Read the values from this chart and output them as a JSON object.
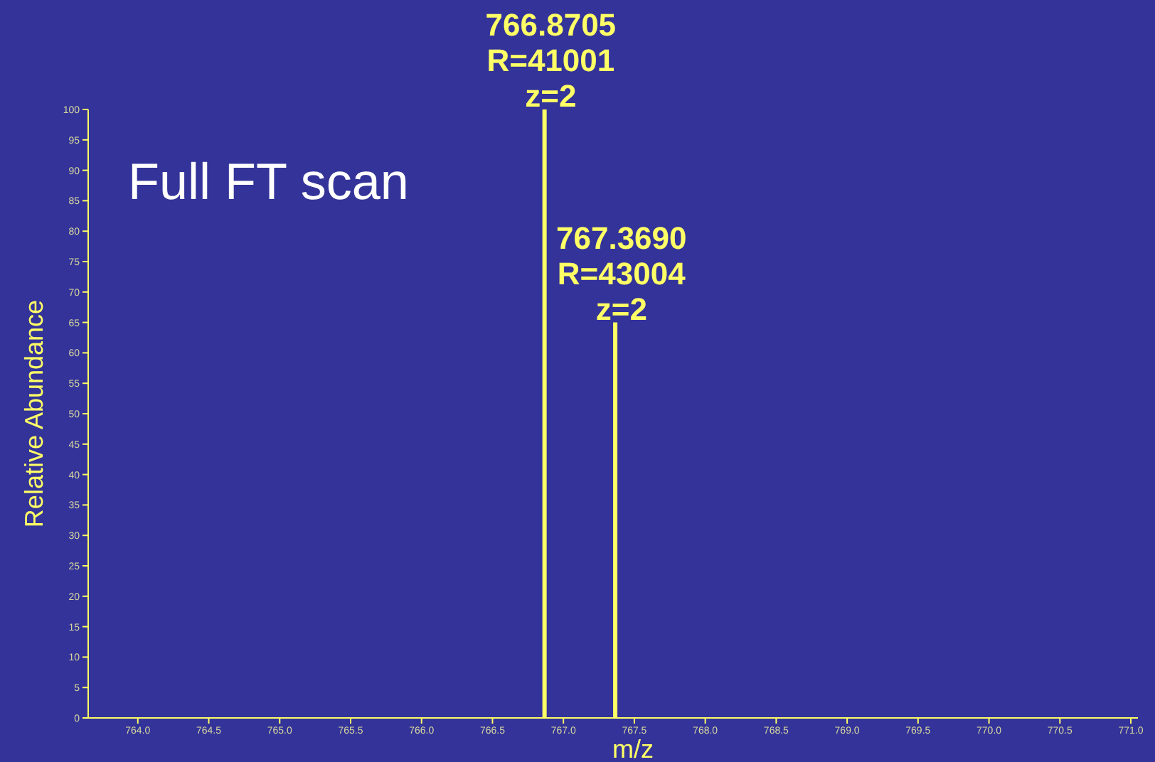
{
  "chart_data": {
    "type": "bar",
    "title": "Full FT scan",
    "xlabel": "m/z",
    "ylabel": "Relative Abundance",
    "x": [
      766.8705,
      767.369
    ],
    "values": [
      100,
      65
    ],
    "color": "#ffff66",
    "xlim": [
      763.65,
      771.05
    ],
    "xticks": [
      {
        "value": 764,
        "label": "764.0"
      },
      {
        "value": 764.5,
        "label": "764.5"
      },
      {
        "value": 765,
        "label": "765.0"
      },
      {
        "value": 765.5,
        "label": "765.5"
      },
      {
        "value": 766,
        "label": "766.0"
      },
      {
        "value": 766.5,
        "label": "766.5"
      },
      {
        "value": 767,
        "label": "767.0"
      },
      {
        "value": 767.5,
        "label": "767.5"
      },
      {
        "value": 768,
        "label": "768.0"
      },
      {
        "value": 768.5,
        "label": "768.5"
      },
      {
        "value": 769,
        "label": "769.0"
      },
      {
        "value": 769.5,
        "label": "769.5"
      },
      {
        "value": 770,
        "label": "770.0"
      },
      {
        "value": 770.5,
        "label": "770.5"
      },
      {
        "value": 771,
        "label": "771.0"
      }
    ],
    "ylim": [
      0,
      100
    ],
    "yticks": [
      0,
      5,
      10,
      15,
      20,
      25,
      30,
      35,
      40,
      45,
      50,
      55,
      60,
      65,
      70,
      75,
      80,
      85,
      90,
      95,
      100
    ],
    "annotations": [
      {
        "text": "766.8705\nR=41001\nz=2",
        "x": 766.8705,
        "y": 100
      },
      {
        "text": "767.3690\nR=43004\nz=2",
        "x": 767.369,
        "y": 65
      }
    ]
  }
}
